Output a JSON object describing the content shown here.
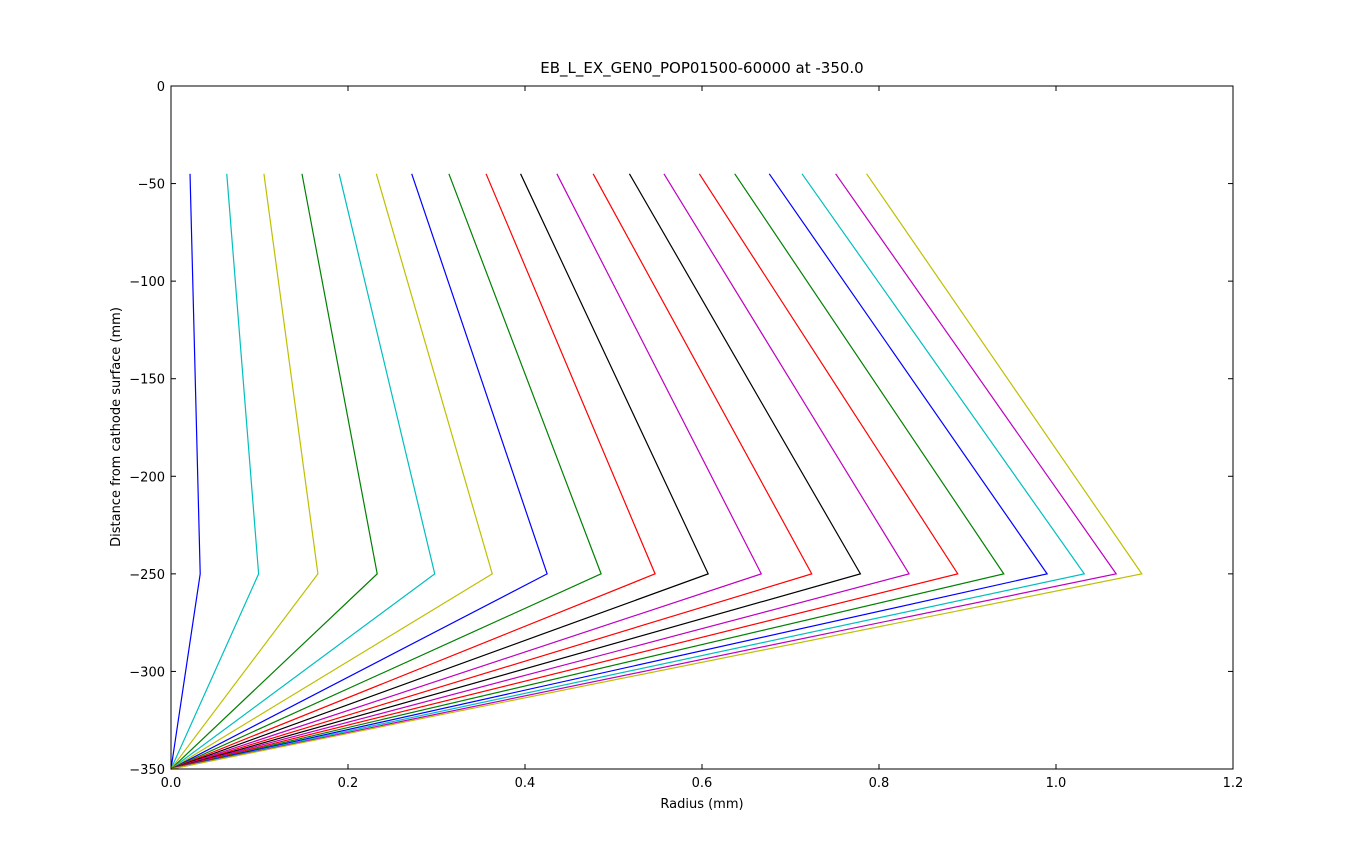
{
  "chart_data": {
    "type": "line",
    "title": "EB_L_EX_GEN0_POP01500-60000 at -350.0",
    "xlabel": "Radius (mm)",
    "ylabel": "Distance from cathode surface (mm)",
    "xlim": [
      0,
      1.2
    ],
    "ylim": [
      -350,
      0
    ],
    "xticks": [
      {
        "value": 0,
        "label": "0.0"
      },
      0.2,
      0.4,
      0.6,
      0.8,
      {
        "value": 1,
        "label": "1.0"
      },
      1.2
    ],
    "yticks": [
      {
        "value": -350,
        "label": "−350"
      },
      {
        "value": -300,
        "label": "−300"
      },
      {
        "value": -250,
        "label": "−250"
      },
      {
        "value": -200,
        "label": "−200"
      },
      {
        "value": -150,
        "label": "−150"
      },
      {
        "value": -100,
        "label": "−100"
      },
      {
        "value": -50,
        "label": "−50"
      },
      0
    ],
    "series": [
      {
        "color": "#0000ff",
        "x": [
          0.0215,
          0.033,
          0
        ],
        "values": [
          -45,
          -250,
          -350
        ]
      },
      {
        "color": "#00bfbf",
        "x": [
          0.063,
          0.099,
          0
        ],
        "values": [
          -45,
          -250,
          -350
        ]
      },
      {
        "color": "#bfbf00",
        "x": [
          0.105,
          0.166,
          0
        ],
        "values": [
          -45,
          -250,
          -350
        ]
      },
      {
        "color": "#008000",
        "x": [
          0.148,
          0.233,
          0
        ],
        "values": [
          -45,
          -250,
          -350
        ]
      },
      {
        "color": "#00bfbf",
        "x": [
          0.19,
          0.298,
          0
        ],
        "values": [
          -45,
          -250,
          -350
        ]
      },
      {
        "color": "#bfbf00",
        "x": [
          0.232,
          0.363,
          0
        ],
        "values": [
          -45,
          -250,
          -350
        ]
      },
      {
        "color": "#0000ff",
        "x": [
          0.272,
          0.425,
          0
        ],
        "values": [
          -45,
          -250,
          -350
        ]
      },
      {
        "color": "#008000",
        "x": [
          0.314,
          0.486,
          0
        ],
        "values": [
          -45,
          -250,
          -350
        ]
      },
      {
        "color": "#ff0000",
        "x": [
          0.356,
          0.547,
          0
        ],
        "values": [
          -45,
          -250,
          -350
        ]
      },
      {
        "color": "#000000",
        "x": [
          0.395,
          0.607,
          0
        ],
        "values": [
          -45,
          -250,
          -350
        ]
      },
      {
        "color": "#bf00bf",
        "x": [
          0.436,
          0.667,
          0
        ],
        "values": [
          -45,
          -250,
          -350
        ]
      },
      {
        "color": "#ff0000",
        "x": [
          0.477,
          0.724,
          0
        ],
        "values": [
          -45,
          -250,
          -350
        ]
      },
      {
        "color": "#000000",
        "x": [
          0.518,
          0.779,
          0
        ],
        "values": [
          -45,
          -250,
          -350
        ]
      },
      {
        "color": "#bf00bf",
        "x": [
          0.557,
          0.834,
          0
        ],
        "values": [
          -45,
          -250,
          -350
        ]
      },
      {
        "color": "#ff0000",
        "x": [
          0.597,
          0.889,
          0
        ],
        "values": [
          -45,
          -250,
          -350
        ]
      },
      {
        "color": "#008000",
        "x": [
          0.637,
          0.941,
          0
        ],
        "values": [
          -45,
          -250,
          -350
        ]
      },
      {
        "color": "#0000ff",
        "x": [
          0.676,
          0.99,
          0
        ],
        "values": [
          -45,
          -250,
          -350
        ]
      },
      {
        "color": "#00bfbf",
        "x": [
          0.713,
          1.032,
          0
        ],
        "values": [
          -45,
          -250,
          -350
        ]
      },
      {
        "color": "#bf00bf",
        "x": [
          0.751,
          1.068,
          0
        ],
        "values": [
          -45,
          -250,
          -350
        ]
      },
      {
        "color": "#bfbf00",
        "x": [
          0.786,
          1.097,
          0
        ],
        "values": [
          -45,
          -250,
          -350
        ]
      }
    ]
  }
}
